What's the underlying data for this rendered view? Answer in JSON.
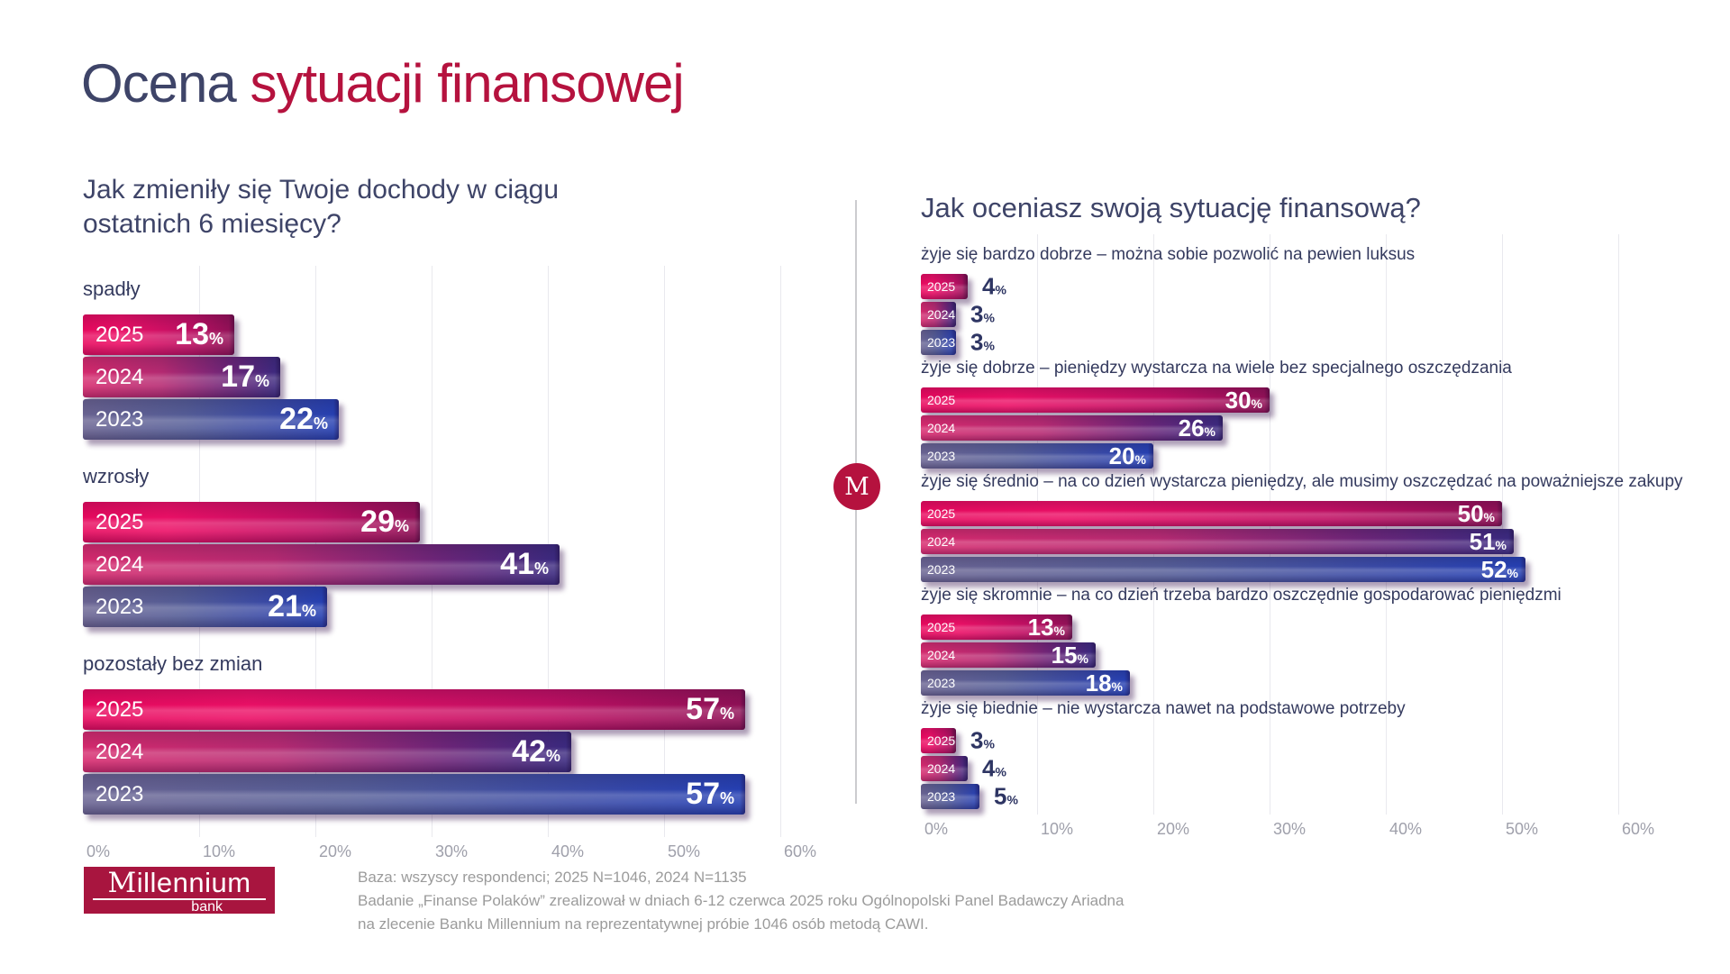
{
  "page": {
    "title_primary": "Ocena ",
    "title_accent": "sytuacji finansowej"
  },
  "badge": {
    "letter": "M"
  },
  "colors": {
    "navy": "#3e4468",
    "accent_crimson": "#b5123e",
    "bar_pink_2025": "#ec0f66",
    "bar_indigo_2024": "#3a2a80",
    "bar_blue_2023": "#2540b4",
    "axis_gray": "#9fa0ab"
  },
  "chart_data": [
    {
      "id": "income",
      "type": "bar",
      "title": "Jak zmieniły się Twoje dochody w ciągu ostatnich 6 miesięcy?",
      "series_years": [
        "2025",
        "2024",
        "2023"
      ],
      "groups": [
        {
          "label": "spadły",
          "values": [
            13,
            17,
            22
          ]
        },
        {
          "label": "wzrosły",
          "values": [
            29,
            41,
            21
          ]
        },
        {
          "label": "pozostały bez zmian",
          "values": [
            57,
            42,
            57
          ]
        }
      ],
      "x_ticks": [
        "0%",
        "10%",
        "20%",
        "30%",
        "40%",
        "50%",
        "60%"
      ],
      "xlim": [
        0,
        60
      ],
      "unit": "%",
      "grid": true,
      "legend": "none"
    },
    {
      "id": "assessment",
      "type": "bar",
      "title": "Jak oceniasz swoją sytuację finansową?",
      "series_years": [
        "2025",
        "2024",
        "2023"
      ],
      "groups": [
        {
          "label": "żyje się bardzo dobrze – można sobie pozwolić na pewien luksus",
          "values": [
            4,
            3,
            3
          ]
        },
        {
          "label": "żyje się dobrze – pieniędzy wystarcza na wiele bez specjalnego oszczędzania",
          "values": [
            30,
            26,
            20
          ]
        },
        {
          "label": "żyje się średnio – na co dzień wystarcza pieniędzy, ale musimy oszczędzać na poważniejsze zakupy",
          "values": [
            50,
            51,
            52
          ]
        },
        {
          "label": "żyje się skromnie – na co dzień trzeba bardzo oszczędnie gospodarować pieniędzmi",
          "values": [
            13,
            15,
            18
          ]
        },
        {
          "label": "żyje się biednie – nie wystarcza nawet na podstawowe potrzeby",
          "values": [
            3,
            4,
            5
          ]
        }
      ],
      "x_ticks": [
        "0%",
        "10%",
        "20%",
        "30%",
        "40%",
        "50%",
        "60%"
      ],
      "xlim": [
        0,
        60
      ],
      "unit": "%",
      "grid": true,
      "legend": "none"
    }
  ],
  "footer": {
    "logo": {
      "m": "M",
      "rest": "illennium",
      "sub": "bank"
    },
    "lines": [
      "Baza: wszyscy respondenci; 2025 N=1046, 2024 N=1135",
      "Badanie „Finanse Polaków” zrealizował w dniach 6-12 czerwca 2025 roku Ogólnopolski Panel Badawczy Ariadna",
      "na zlecenie Banku Millennium na reprezentatywnej próbie 1046 osób metodą CAWI."
    ]
  }
}
